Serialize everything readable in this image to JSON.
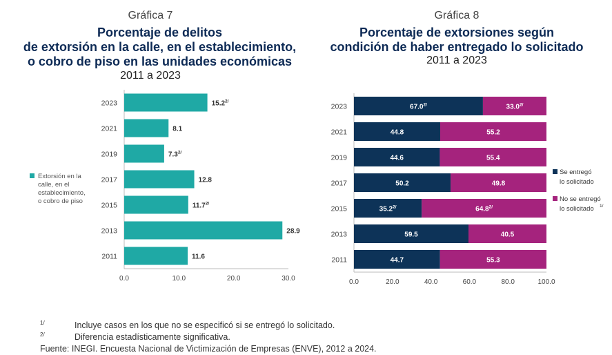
{
  "colors": {
    "teal": "#1fa9a5",
    "navy": "#0d3358",
    "magenta": "#a5237d",
    "title": "#0d2a55"
  },
  "chart7": {
    "kicker": "Gráfica 7",
    "title_lines": [
      "Porcentaje de delitos",
      "de extorsión en la calle, en el establecimiento,",
      "o cobro de piso en las unidades económicas"
    ],
    "subtitle": "2011 a 2023",
    "legend": "Extorsión en la calle, en el establecimiento, o cobro de piso",
    "legend_lines": [
      "Extorsión en la",
      "calle, en el",
      "establecimiento,",
      "o cobro de piso"
    ]
  },
  "chart8": {
    "kicker": "Gráfica 8",
    "title_lines": [
      "Porcentaje de extorsiones según",
      "condición de haber entregado lo solicitado"
    ],
    "subtitle": "2011 a 2023",
    "legend": [
      {
        "lines": [
          "Se entregó",
          "lo solicitado"
        ],
        "sup": ""
      },
      {
        "lines": [
          "No se entregó",
          "lo solicitado"
        ],
        "sup": "1/"
      }
    ]
  },
  "chart_data": [
    {
      "type": "bar",
      "orientation": "horizontal",
      "categories": [
        "2023",
        "2021",
        "2019",
        "2017",
        "2015",
        "2013",
        "2011"
      ],
      "values": [
        15.2,
        8.1,
        7.3,
        12.8,
        11.7,
        28.9,
        11.6
      ],
      "value_labels": [
        "15.2",
        "8.1",
        "7.3",
        "12.8",
        "11.7",
        "28.9",
        "11.6"
      ],
      "value_sups": [
        "2/",
        "",
        "2/",
        "",
        "2/",
        "",
        ""
      ],
      "series": [
        {
          "name": "Extorsión en la calle, en el establecimiento, o cobro de piso",
          "values": [
            15.2,
            8.1,
            7.3,
            12.8,
            11.7,
            28.9,
            11.6
          ]
        }
      ],
      "xlim": [
        0,
        30
      ],
      "xticks": [
        "0.0",
        "10.0",
        "20.0",
        "30.0"
      ],
      "legend_position": "left",
      "grid": false
    },
    {
      "type": "bar",
      "orientation": "horizontal",
      "stacked": true,
      "categories": [
        "2023",
        "2021",
        "2019",
        "2017",
        "2015",
        "2013",
        "2011"
      ],
      "series": [
        {
          "name": "Se entregó lo solicitado",
          "values": [
            67.0,
            44.8,
            44.6,
            50.2,
            35.2,
            59.5,
            44.7
          ],
          "labels": [
            "67.0",
            "44.8",
            "44.6",
            "50.2",
            "35.2",
            "59.5",
            "44.7"
          ],
          "sups": [
            "2/",
            "",
            "",
            "",
            "2/",
            "",
            ""
          ]
        },
        {
          "name": "No se entregó lo solicitado",
          "values": [
            33.0,
            55.2,
            55.4,
            49.8,
            64.8,
            40.5,
            55.3
          ],
          "labels": [
            "33.0",
            "55.2",
            "55.4",
            "49.8",
            "64.8",
            "40.5",
            "55.3"
          ],
          "sups": [
            "2/",
            "",
            "",
            "",
            "2/",
            "",
            ""
          ]
        }
      ],
      "xlim": [
        0,
        100
      ],
      "xticks": [
        "0.0",
        "20.0",
        "40.0",
        "60.0",
        "80.0",
        "100.0"
      ],
      "legend_position": "right",
      "grid": false
    }
  ],
  "footnotes": [
    {
      "mark": "1/",
      "text": "Incluye casos en los que no se especificó si se entregó lo solicitado."
    },
    {
      "mark": "2/",
      "text": "Diferencia estadísticamente significativa."
    }
  ],
  "source": "Fuente: INEGI. Encuesta Nacional de Victimización de Empresas (ENVE), 2012 a 2024."
}
